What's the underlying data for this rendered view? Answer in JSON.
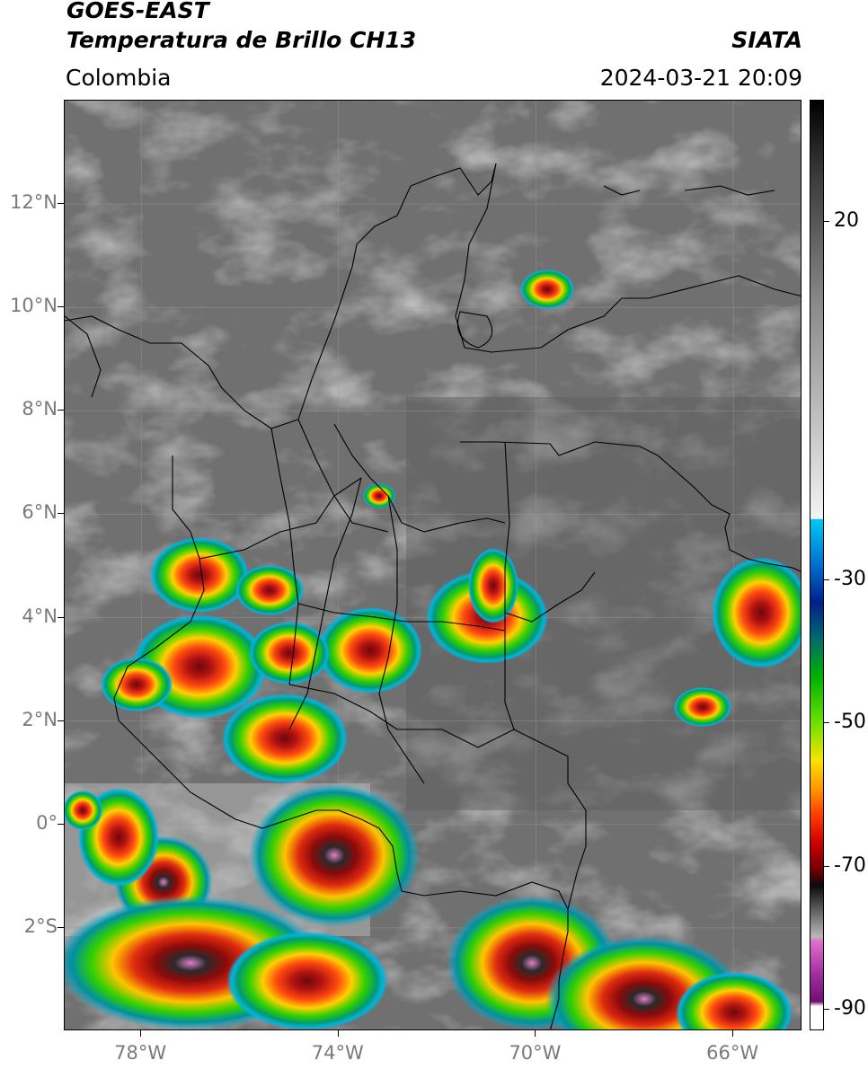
{
  "header": {
    "title_line1": "GOES-EAST",
    "title_line2": "Temperatura de Brillo CH13",
    "organization": "SIATA",
    "region": "Colombia",
    "timestamp": "2024-03-21 20:09"
  },
  "map": {
    "lat_labels": [
      {
        "text": "12°N",
        "value": 12
      },
      {
        "text": "10°N",
        "value": 10
      },
      {
        "text": "8°N",
        "value": 8
      },
      {
        "text": "6°N",
        "value": 6
      },
      {
        "text": "4°N",
        "value": 4
      },
      {
        "text": "2°N",
        "value": 2
      },
      {
        "text": "0°",
        "value": 0
      },
      {
        "text": "2°S",
        "value": -2
      }
    ],
    "lon_labels": [
      {
        "text": "78°W",
        "value": -78
      },
      {
        "text": "74°W",
        "value": -74
      },
      {
        "text": "70°W",
        "value": -70
      },
      {
        "text": "66°W",
        "value": -66
      }
    ],
    "extent": {
      "lon_min": -79.55,
      "lon_max": -64.6,
      "lat_min": -4.0,
      "lat_max": 14.0
    }
  },
  "colorbar": {
    "ticks": [
      {
        "label": "20",
        "value": 20
      },
      {
        "label": "-30",
        "value": -30
      },
      {
        "label": "-50",
        "value": -50
      },
      {
        "label": "-70",
        "value": -70
      },
      {
        "label": "-90",
        "value": -90
      }
    ],
    "range": [
      -93,
      37
    ]
  }
}
